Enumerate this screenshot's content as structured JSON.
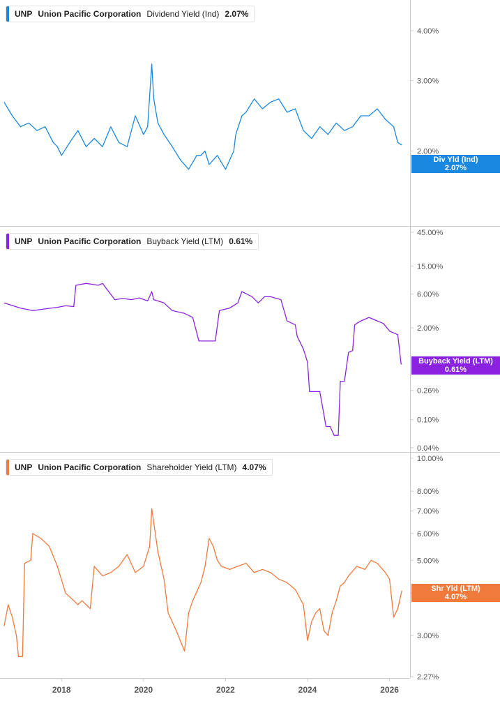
{
  "chart_data": [
    {
      "type": "line",
      "scale": "log",
      "legend": {
        "ticker": "UNP",
        "company": "Union Pacific Corporation",
        "metric": "Dividend Yield (Ind)",
        "value": "2.07%"
      },
      "tag": {
        "label": "Div Yld (Ind)",
        "value": "2.07%"
      },
      "color": "#1a87e0",
      "yticks": [
        "4.00%",
        "3.00%",
        "2.00%"
      ],
      "ylim": [
        1.6,
        4.3
      ],
      "x": [
        2016.6,
        2016.8,
        2017.0,
        2017.2,
        2017.4,
        2017.6,
        2017.8,
        2017.9,
        2018.0,
        2018.2,
        2018.4,
        2018.6,
        2018.8,
        2019.0,
        2019.2,
        2019.4,
        2019.6,
        2019.8,
        2020.0,
        2020.1,
        2020.2,
        2020.25,
        2020.35,
        2020.5,
        2020.7,
        2020.9,
        2021.1,
        2021.3,
        2021.4,
        2021.5,
        2021.6,
        2021.8,
        2022.0,
        2022.2,
        2022.25,
        2022.4,
        2022.5,
        2022.7,
        2022.9,
        2023.1,
        2023.3,
        2023.5,
        2023.7,
        2023.9,
        2024.1,
        2024.3,
        2024.5,
        2024.7,
        2024.9,
        2025.1,
        2025.3,
        2025.5,
        2025.7,
        2025.9,
        2026.1,
        2026.2,
        2026.3
      ],
      "y": [
        2.65,
        2.45,
        2.3,
        2.35,
        2.25,
        2.3,
        2.1,
        2.05,
        1.95,
        2.1,
        2.25,
        2.05,
        2.15,
        2.05,
        2.3,
        2.1,
        2.05,
        2.45,
        2.2,
        2.3,
        3.3,
        2.7,
        2.35,
        2.2,
        2.05,
        1.9,
        1.8,
        1.95,
        1.95,
        2.0,
        1.85,
        1.95,
        1.8,
        2.0,
        2.2,
        2.45,
        2.5,
        2.7,
        2.55,
        2.65,
        2.7,
        2.5,
        2.55,
        2.25,
        2.15,
        2.3,
        2.2,
        2.35,
        2.25,
        2.3,
        2.45,
        2.45,
        2.55,
        2.4,
        2.3,
        2.1,
        2.07
      ]
    },
    {
      "type": "line",
      "scale": "log",
      "legend": {
        "ticker": "UNP",
        "company": "Union Pacific Corporation",
        "metric": "Buyback Yield (LTM)",
        "value": "0.61%"
      },
      "tag": {
        "label": "Buyback Yield (LTM)",
        "value": "0.61%"
      },
      "color": "#8a22e0",
      "yticks": [
        "45.00%",
        "15.00%",
        "6.00%",
        "2.00%",
        "0.26%",
        "0.10%",
        "0.04%"
      ],
      "ylim": [
        0.04,
        45
      ],
      "x": [
        2016.6,
        2017.0,
        2017.3,
        2017.6,
        2017.9,
        2018.1,
        2018.3,
        2018.35,
        2018.6,
        2018.9,
        2019.0,
        2019.3,
        2019.5,
        2019.7,
        2019.9,
        2020.1,
        2020.2,
        2020.25,
        2020.5,
        2020.7,
        2021.0,
        2021.2,
        2021.35,
        2021.6,
        2021.75,
        2021.85,
        2022.1,
        2022.3,
        2022.4,
        2022.65,
        2022.8,
        2022.95,
        2023.1,
        2023.35,
        2023.5,
        2023.7,
        2023.75,
        2023.9,
        2024.0,
        2024.05,
        2024.3,
        2024.45,
        2024.55,
        2024.65,
        2024.75,
        2024.8,
        2024.9,
        2025.0,
        2025.1,
        2025.15,
        2025.3,
        2025.5,
        2025.7,
        2025.85,
        2026.0,
        2026.2,
        2026.28,
        2026.3
      ],
      "y": [
        4.5,
        3.8,
        3.5,
        3.7,
        3.9,
        4.1,
        4.0,
        8.0,
        8.5,
        8.0,
        8.5,
        5.0,
        5.2,
        5.0,
        5.3,
        4.8,
        6.5,
        5.0,
        4.5,
        3.5,
        3.2,
        2.8,
        1.3,
        1.3,
        1.3,
        3.5,
        3.8,
        4.5,
        6.5,
        5.5,
        4.5,
        5.5,
        5.5,
        5.0,
        2.5,
        2.2,
        1.5,
        1.0,
        0.65,
        0.25,
        0.25,
        0.08,
        0.08,
        0.06,
        0.06,
        0.35,
        0.35,
        0.9,
        0.95,
        2.2,
        2.5,
        2.8,
        2.5,
        2.3,
        1.8,
        1.6,
        0.62,
        0.61
      ]
    },
    {
      "type": "line",
      "scale": "log",
      "legend": {
        "ticker": "UNP",
        "company": "Union Pacific Corporation",
        "metric": "Shareholder Yield (LTM)",
        "value": "4.07%"
      },
      "tag": {
        "label": "Shr Yld (LTM)",
        "value": "4.07%"
      },
      "color": "#f07a3c",
      "yticks": [
        "10.00%",
        "8.00%",
        "7.00%",
        "6.00%",
        "5.00%",
        "4.00%",
        "3.00%",
        "2.27%"
      ],
      "ylim": [
        2.27,
        10.0
      ],
      "x": [
        2016.6,
        2016.7,
        2016.8,
        2016.9,
        2016.95,
        2017.05,
        2017.1,
        2017.25,
        2017.3,
        2017.5,
        2017.7,
        2017.9,
        2018.1,
        2018.3,
        2018.4,
        2018.5,
        2018.7,
        2018.8,
        2019.0,
        2019.2,
        2019.4,
        2019.6,
        2019.8,
        2020.0,
        2020.15,
        2020.2,
        2020.35,
        2020.5,
        2020.6,
        2020.8,
        2021.0,
        2021.1,
        2021.2,
        2021.4,
        2021.5,
        2021.6,
        2021.7,
        2021.8,
        2021.9,
        2022.1,
        2022.3,
        2022.5,
        2022.7,
        2022.9,
        2023.1,
        2023.3,
        2023.5,
        2023.7,
        2023.9,
        2024.0,
        2024.1,
        2024.2,
        2024.3,
        2024.4,
        2024.5,
        2024.6,
        2024.7,
        2024.8,
        2024.9,
        2025.0,
        2025.2,
        2025.4,
        2025.55,
        2025.7,
        2025.9,
        2026.0,
        2026.1,
        2026.2,
        2026.3
      ],
      "y": [
        3.2,
        3.7,
        3.4,
        3.0,
        2.6,
        2.6,
        4.9,
        5.0,
        6.0,
        5.8,
        5.5,
        4.8,
        4.0,
        3.8,
        3.7,
        3.8,
        3.6,
        4.8,
        4.5,
        4.6,
        4.8,
        5.2,
        4.6,
        4.8,
        5.5,
        7.1,
        5.3,
        4.4,
        3.5,
        3.1,
        2.7,
        3.5,
        3.8,
        4.3,
        4.8,
        5.8,
        5.5,
        5.0,
        4.8,
        4.7,
        4.8,
        4.9,
        4.6,
        4.7,
        4.6,
        4.4,
        4.3,
        4.1,
        3.7,
        2.9,
        3.3,
        3.5,
        3.6,
        3.1,
        3.0,
        3.5,
        3.8,
        4.2,
        4.3,
        4.5,
        4.8,
        4.7,
        5.0,
        4.9,
        4.6,
        4.4,
        3.4,
        3.6,
        4.07
      ]
    }
  ],
  "xaxis": {
    "range": [
      2016.5,
      2026.5
    ],
    "ticks": [
      "2018",
      "2020",
      "2022",
      "2024",
      "2026"
    ]
  },
  "panels_bg": "#ffffff",
  "grid": false
}
